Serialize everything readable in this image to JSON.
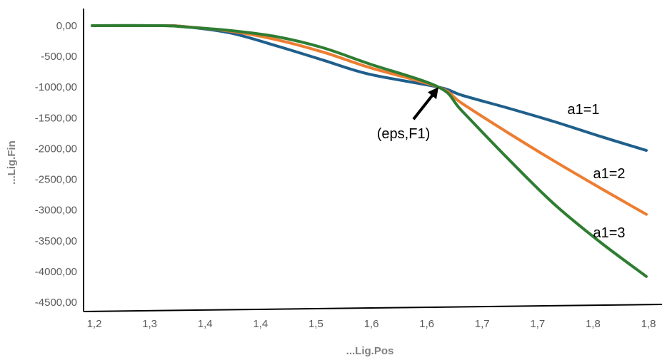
{
  "chart_data": {
    "type": "line",
    "xlabel": "...Lig.Pos",
    "ylabel": "...Lig.Fin",
    "x_tick_labels": [
      "1,2",
      "1,3",
      "1,4",
      "1,4",
      "1,5",
      "1,6",
      "1,6",
      "1,7",
      "1,7",
      "1,8",
      "1,8"
    ],
    "y_tick_labels": [
      "0,00",
      "-500,00",
      "-1000,00",
      "-1500,00",
      "-2000,00",
      "-2500,00",
      "-3000,00",
      "-3500,00",
      "-4000,00",
      "-4500,00"
    ],
    "ylim": [
      -4500,
      0
    ],
    "xlim": [
      1.2,
      1.8
    ],
    "grid": false,
    "annotations": [
      {
        "text": "(eps,F1)",
        "points_to": [
          1.575,
          -1000
        ]
      }
    ],
    "series": [
      {
        "name": "a1=1",
        "color": "#1f5f8b",
        "x": [
          1.2,
          1.275,
          1.3,
          1.35,
          1.4,
          1.45,
          1.5,
          1.575,
          1.6,
          1.65,
          1.7,
          1.75,
          1.8
        ],
        "y": [
          0,
          0,
          -15,
          -120,
          -330,
          -560,
          -790,
          -1000,
          -1130,
          -1340,
          -1560,
          -1800,
          -2030
        ]
      },
      {
        "name": "a1=2",
        "color": "#ed7d31",
        "x": [
          1.2,
          1.275,
          1.3,
          1.35,
          1.4,
          1.45,
          1.5,
          1.575,
          1.6,
          1.65,
          1.7,
          1.75,
          1.8
        ],
        "y": [
          0,
          0,
          -15,
          -90,
          -230,
          -430,
          -680,
          -1000,
          -1260,
          -1740,
          -2200,
          -2640,
          -3070
        ]
      },
      {
        "name": "a1=3",
        "color": "#2e7d32",
        "x": [
          1.2,
          1.275,
          1.3,
          1.35,
          1.4,
          1.45,
          1.5,
          1.575,
          1.6,
          1.65,
          1.7,
          1.75,
          1.8
        ],
        "y": [
          0,
          0,
          -20,
          -80,
          -180,
          -360,
          -620,
          -1000,
          -1380,
          -2160,
          -2900,
          -3520,
          -4080
        ]
      }
    ]
  }
}
